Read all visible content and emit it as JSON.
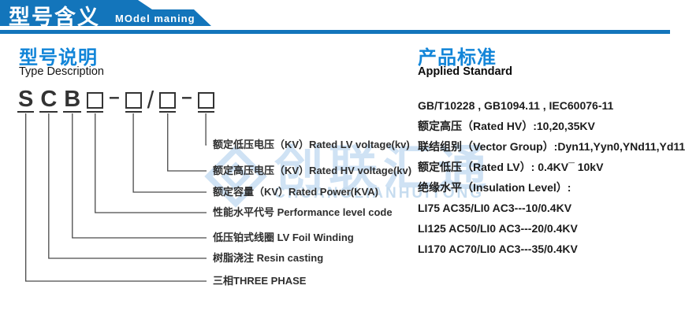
{
  "banner": {
    "title_zh": "型号含义",
    "title_en": "MOdel maning"
  },
  "left": {
    "heading_zh": "型号说明",
    "heading_en": "Type Description",
    "code_units": [
      {
        "kind": "char",
        "value": "S",
        "slot": true
      },
      {
        "kind": "char",
        "value": "C",
        "slot": true
      },
      {
        "kind": "char",
        "value": "B",
        "slot": true
      },
      {
        "kind": "box",
        "slot": true
      },
      {
        "kind": "sep",
        "value": "–"
      },
      {
        "kind": "box",
        "slot": true
      },
      {
        "kind": "slash",
        "value": "/"
      },
      {
        "kind": "box",
        "slot": true
      },
      {
        "kind": "sep",
        "value": "–"
      },
      {
        "kind": "box",
        "slot": true
      }
    ],
    "callouts": [
      "额定低压电压（KV）Rated LV voltage(kv)",
      "额定高压电压（KV）Rated HV voltage(kv)",
      "额定容量（KV）Rated Power(KVA)",
      "性能水平代号 Performance level code",
      "低压铂式线圈 LV Foil Winding",
      "树脂浇注 Resin casting",
      "三相THREE PHASE"
    ]
  },
  "right": {
    "heading_zh": "产品标准",
    "heading_en": "Applied Standard",
    "lines": [
      "GB/T10228 , GB1094.11 , IEC60076-11",
      "额定高压（Rated HV）:10,20,35KV",
      "联结组别（Vector Group）:Dyn11,Yyn0,YNd11,Yd11",
      "额定低压（Rated LV）: 0.4KV¯ 10kV",
      "绝缘水平（Insulation Level）:",
      "LI75 AC35/LI0 AC3---10/0.4KV",
      "LI125 AC50/LI0 AC3---20/0.4KV",
      "LI170 AC70/LI0 AC3---35/0.4KV"
    ]
  },
  "watermark": {
    "cn": "创联汇通",
    "en": "CHUANGLIANHUITONG"
  },
  "colors": {
    "banner_blue": "#1375bb",
    "heading_blue": "#1285d8",
    "watermark_blue": "#cfe2f4",
    "text_dark": "#2e2e2e"
  }
}
